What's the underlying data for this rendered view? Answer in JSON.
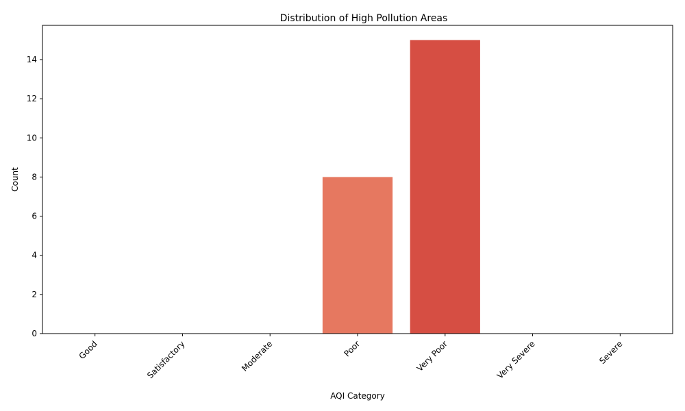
{
  "chart_data": {
    "type": "bar",
    "title": "Distribution of High Pollution Areas",
    "xlabel": "AQI Category",
    "ylabel": "Count",
    "categories": [
      "Good",
      "Satisfactory",
      "Moderate",
      "Poor",
      "Very Poor",
      "Very Severe",
      "Severe"
    ],
    "values": [
      0,
      0,
      0,
      8,
      15,
      0,
      0
    ],
    "colors": [
      "#fdd49e",
      "#fdbb84",
      "#fc8d59",
      "#e67860",
      "#d64e43",
      "#b31b1b",
      "#7f0000"
    ],
    "ylim": [
      0,
      15.75
    ],
    "yticks": [
      0,
      2,
      4,
      6,
      8,
      10,
      12,
      14
    ],
    "grid": false,
    "legend": "none"
  }
}
